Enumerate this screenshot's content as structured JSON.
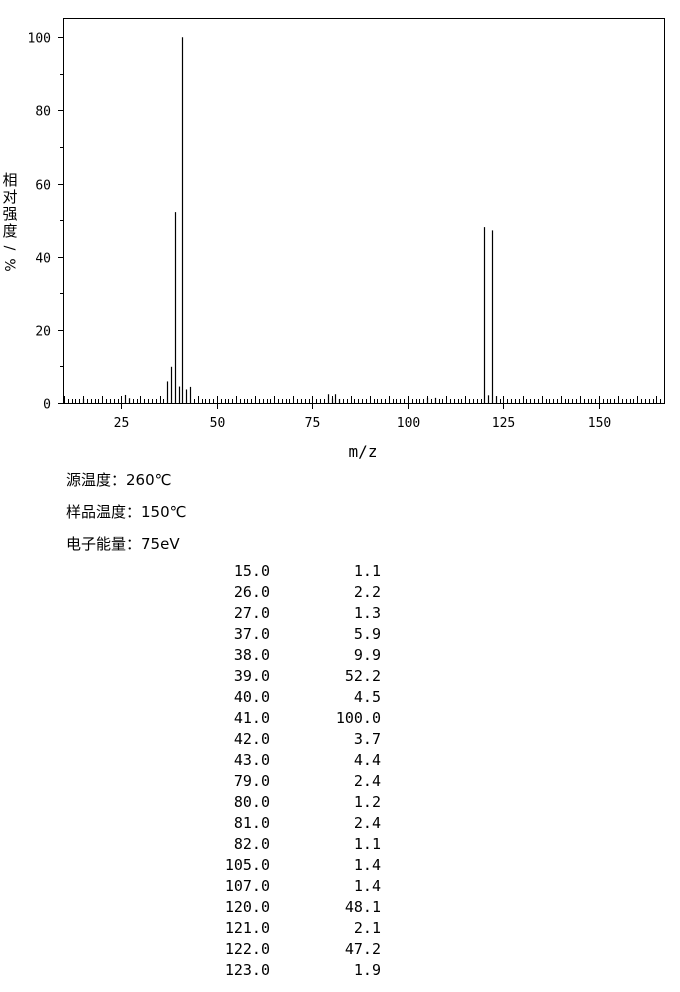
{
  "chart_data": {
    "type": "bar",
    "xlabel": "m/z",
    "ylabel": [
      "相",
      "对",
      "强",
      "度",
      "/",
      "%"
    ],
    "xlim": [
      10,
      167
    ],
    "ylim": [
      0,
      105
    ],
    "x_ticks": [
      25,
      50,
      75,
      100,
      125,
      150
    ],
    "y_ticks": [
      0,
      20,
      40,
      60,
      80,
      100
    ],
    "bar_color": "#000000",
    "grid": false,
    "peaks": [
      {
        "mz": 15.0,
        "intensity": 1.1
      },
      {
        "mz": 26.0,
        "intensity": 2.2
      },
      {
        "mz": 27.0,
        "intensity": 1.3
      },
      {
        "mz": 37.0,
        "intensity": 5.9
      },
      {
        "mz": 38.0,
        "intensity": 9.9
      },
      {
        "mz": 39.0,
        "intensity": 52.2
      },
      {
        "mz": 40.0,
        "intensity": 4.5
      },
      {
        "mz": 41.0,
        "intensity": 100.0
      },
      {
        "mz": 42.0,
        "intensity": 3.7
      },
      {
        "mz": 43.0,
        "intensity": 4.4
      },
      {
        "mz": 79.0,
        "intensity": 2.4
      },
      {
        "mz": 80.0,
        "intensity": 1.2
      },
      {
        "mz": 81.0,
        "intensity": 2.4
      },
      {
        "mz": 82.0,
        "intensity": 1.1
      },
      {
        "mz": 105.0,
        "intensity": 1.4
      },
      {
        "mz": 107.0,
        "intensity": 1.4
      },
      {
        "mz": 120.0,
        "intensity": 48.1
      },
      {
        "mz": 121.0,
        "intensity": 2.1
      },
      {
        "mz": 122.0,
        "intensity": 47.2
      },
      {
        "mz": 123.0,
        "intensity": 1.9
      }
    ]
  },
  "conditions": {
    "source_temp": "源温度：260℃",
    "sample_temp": "样品温度：150℃",
    "electron_energy": "电子能量：75eV"
  },
  "peak_table": [
    {
      "mz": "15.0",
      "intensity": "1.1"
    },
    {
      "mz": "26.0",
      "intensity": "2.2"
    },
    {
      "mz": "27.0",
      "intensity": "1.3"
    },
    {
      "mz": "37.0",
      "intensity": "5.9"
    },
    {
      "mz": "38.0",
      "intensity": "9.9"
    },
    {
      "mz": "39.0",
      "intensity": "52.2"
    },
    {
      "mz": "40.0",
      "intensity": "4.5"
    },
    {
      "mz": "41.0",
      "intensity": "100.0"
    },
    {
      "mz": "42.0",
      "intensity": "3.7"
    },
    {
      "mz": "43.0",
      "intensity": "4.4"
    },
    {
      "mz": "79.0",
      "intensity": "2.4"
    },
    {
      "mz": "80.0",
      "intensity": "1.2"
    },
    {
      "mz": "81.0",
      "intensity": "2.4"
    },
    {
      "mz": "82.0",
      "intensity": "1.1"
    },
    {
      "mz": "105.0",
      "intensity": "1.4"
    },
    {
      "mz": "107.0",
      "intensity": "1.4"
    },
    {
      "mz": "120.0",
      "intensity": "48.1"
    },
    {
      "mz": "121.0",
      "intensity": "2.1"
    },
    {
      "mz": "122.0",
      "intensity": "47.2"
    },
    {
      "mz": "123.0",
      "intensity": "1.9"
    }
  ]
}
